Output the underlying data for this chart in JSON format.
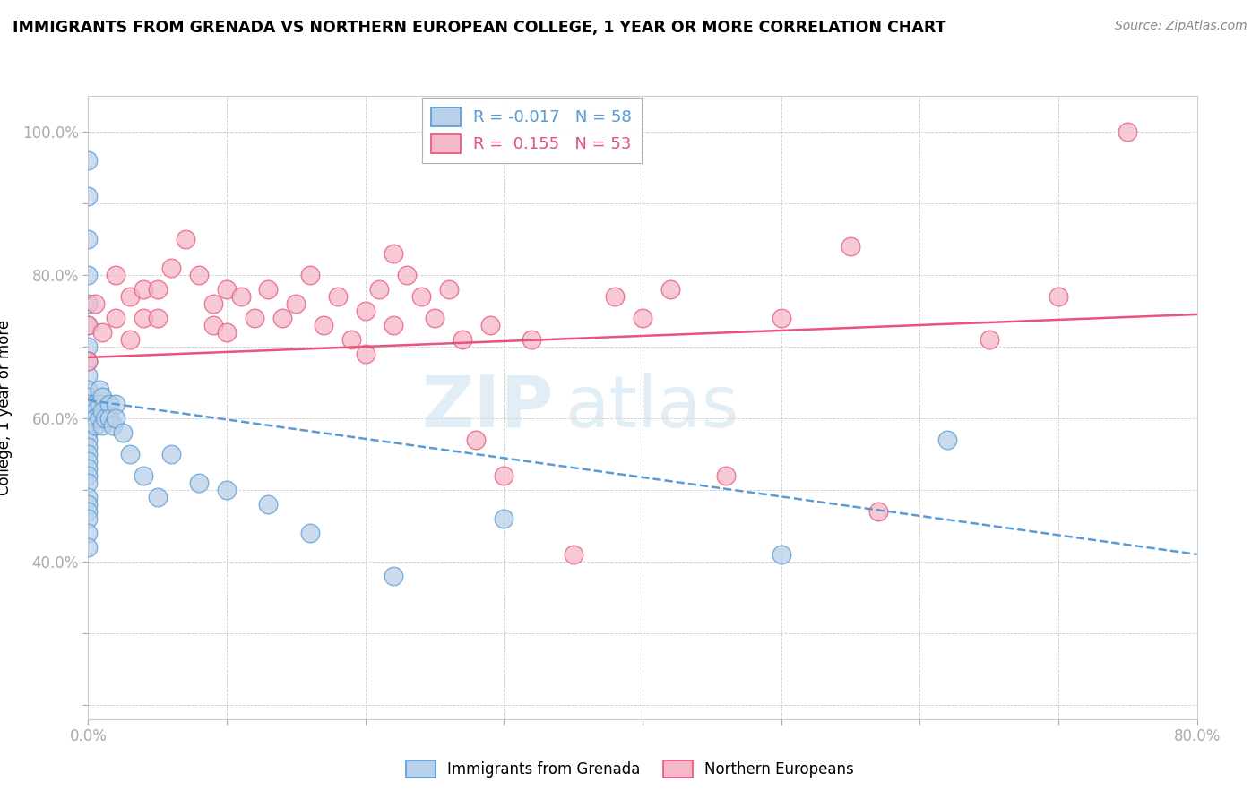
{
  "title": "IMMIGRANTS FROM GRENADA VS NORTHERN EUROPEAN COLLEGE, 1 YEAR OR MORE CORRELATION CHART",
  "source": "Source: ZipAtlas.com",
  "ylabel": "College, 1 year or more",
  "xlabel": "",
  "xlim": [
    0.0,
    0.8
  ],
  "ylim": [
    0.18,
    1.05
  ],
  "xticks": [
    0.0,
    0.1,
    0.2,
    0.3,
    0.4,
    0.5,
    0.6,
    0.7,
    0.8
  ],
  "xticklabels": [
    "0.0%",
    "",
    "",
    "",
    "",
    "",
    "",
    "",
    "80.0%"
  ],
  "yticks": [
    0.2,
    0.3,
    0.4,
    0.5,
    0.6,
    0.7,
    0.8,
    0.9,
    1.0
  ],
  "yticklabels": [
    "",
    "",
    "40.0%",
    "",
    "60.0%",
    "",
    "80.0%",
    "",
    "100.0%"
  ],
  "blue_R": "-0.017",
  "blue_N": "58",
  "pink_R": "0.155",
  "pink_N": "53",
  "blue_color": "#b8d0e8",
  "pink_color": "#f5b8c8",
  "blue_line_color": "#5b9bd5",
  "pink_line_color": "#e8547a",
  "watermark_zip": "ZIP",
  "watermark_atlas": "atlas",
  "legend_label_blue": "Immigrants from Grenada",
  "legend_label_pink": "Northern Europeans",
  "blue_scatter_x": [
    0.0,
    0.0,
    0.0,
    0.0,
    0.0,
    0.0,
    0.0,
    0.0,
    0.0,
    0.0,
    0.0,
    0.0,
    0.0,
    0.0,
    0.0,
    0.0,
    0.0,
    0.0,
    0.0,
    0.0,
    0.0,
    0.0,
    0.0,
    0.0,
    0.0,
    0.0,
    0.0,
    0.0,
    0.0,
    0.005,
    0.005,
    0.005,
    0.005,
    0.008,
    0.008,
    0.008,
    0.01,
    0.01,
    0.01,
    0.012,
    0.015,
    0.015,
    0.018,
    0.02,
    0.02,
    0.025,
    0.03,
    0.04,
    0.05,
    0.06,
    0.08,
    0.1,
    0.13,
    0.16,
    0.22,
    0.3,
    0.5,
    0.62
  ],
  "blue_scatter_y": [
    0.96,
    0.91,
    0.85,
    0.8,
    0.76,
    0.73,
    0.7,
    0.68,
    0.66,
    0.64,
    0.63,
    0.62,
    0.61,
    0.6,
    0.59,
    0.58,
    0.57,
    0.56,
    0.55,
    0.54,
    0.53,
    0.52,
    0.51,
    0.49,
    0.48,
    0.47,
    0.46,
    0.44,
    0.42,
    0.62,
    0.61,
    0.6,
    0.59,
    0.64,
    0.62,
    0.6,
    0.63,
    0.61,
    0.59,
    0.6,
    0.62,
    0.6,
    0.59,
    0.62,
    0.6,
    0.58,
    0.55,
    0.52,
    0.49,
    0.55,
    0.51,
    0.5,
    0.48,
    0.44,
    0.38,
    0.46,
    0.41,
    0.57
  ],
  "pink_scatter_x": [
    0.0,
    0.0,
    0.005,
    0.01,
    0.02,
    0.02,
    0.03,
    0.03,
    0.04,
    0.04,
    0.05,
    0.05,
    0.06,
    0.07,
    0.08,
    0.09,
    0.09,
    0.1,
    0.1,
    0.11,
    0.12,
    0.13,
    0.14,
    0.15,
    0.16,
    0.17,
    0.18,
    0.19,
    0.2,
    0.2,
    0.21,
    0.22,
    0.22,
    0.23,
    0.24,
    0.25,
    0.26,
    0.27,
    0.28,
    0.29,
    0.3,
    0.32,
    0.35,
    0.38,
    0.4,
    0.42,
    0.46,
    0.5,
    0.55,
    0.57,
    0.65,
    0.7,
    0.75
  ],
  "pink_scatter_y": [
    0.73,
    0.68,
    0.76,
    0.72,
    0.8,
    0.74,
    0.77,
    0.71,
    0.78,
    0.74,
    0.78,
    0.74,
    0.81,
    0.85,
    0.8,
    0.76,
    0.73,
    0.78,
    0.72,
    0.77,
    0.74,
    0.78,
    0.74,
    0.76,
    0.8,
    0.73,
    0.77,
    0.71,
    0.75,
    0.69,
    0.78,
    0.83,
    0.73,
    0.8,
    0.77,
    0.74,
    0.78,
    0.71,
    0.57,
    0.73,
    0.52,
    0.71,
    0.41,
    0.77,
    0.74,
    0.78,
    0.52,
    0.74,
    0.84,
    0.47,
    0.71,
    0.77,
    1.0
  ],
  "blue_trend_y_start": 0.625,
  "blue_trend_y_end": 0.41,
  "pink_trend_y_start": 0.685,
  "pink_trend_y_end": 0.745
}
